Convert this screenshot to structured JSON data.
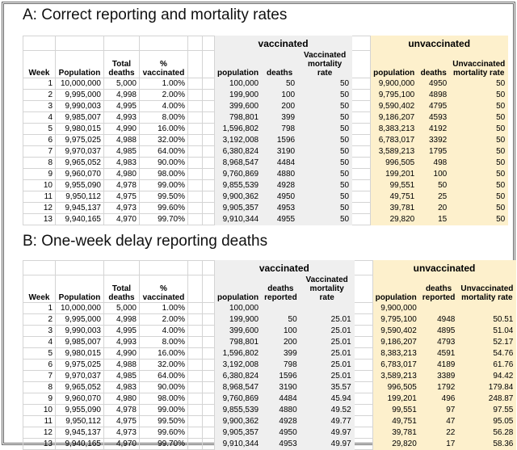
{
  "sections": [
    {
      "title": "A: Correct reporting and mortality rates",
      "group_headers": [
        "vaccinated",
        "unvaccinated"
      ],
      "columns": [
        "Week",
        "Population",
        "Total deaths",
        "% vaccinated",
        "population",
        "deaths",
        "Vaccinated mortality rate",
        "population",
        "deaths",
        "Unvaccinated mortality rate"
      ],
      "rows": [
        [
          "1",
          "10,000,000",
          "5,000",
          "1.00%",
          "100,000",
          "50",
          "50",
          "9,900,000",
          "4950",
          "50"
        ],
        [
          "2",
          "9,995,000",
          "4,998",
          "2.00%",
          "199,900",
          "100",
          "50",
          "9,795,100",
          "4898",
          "50"
        ],
        [
          "3",
          "9,990,003",
          "4,995",
          "4.00%",
          "399,600",
          "200",
          "50",
          "9,590,402",
          "4795",
          "50"
        ],
        [
          "4",
          "9,985,007",
          "4,993",
          "8.00%",
          "798,801",
          "399",
          "50",
          "9,186,207",
          "4593",
          "50"
        ],
        [
          "5",
          "9,980,015",
          "4,990",
          "16.00%",
          "1,596,802",
          "798",
          "50",
          "8,383,213",
          "4192",
          "50"
        ],
        [
          "6",
          "9,975,025",
          "4,988",
          "32.00%",
          "3,192,008",
          "1596",
          "50",
          "6,783,017",
          "3392",
          "50"
        ],
        [
          "7",
          "9,970,037",
          "4,985",
          "64.00%",
          "6,380,824",
          "3190",
          "50",
          "3,589,213",
          "1795",
          "50"
        ],
        [
          "8",
          "9,965,052",
          "4,983",
          "90.00%",
          "8,968,547",
          "4484",
          "50",
          "996,505",
          "498",
          "50"
        ],
        [
          "9",
          "9,960,070",
          "4,980",
          "98.00%",
          "9,760,869",
          "4880",
          "50",
          "199,201",
          "100",
          "50"
        ],
        [
          "10",
          "9,955,090",
          "4,978",
          "99.00%",
          "9,855,539",
          "4928",
          "50",
          "99,551",
          "50",
          "50"
        ],
        [
          "11",
          "9,950,112",
          "4,975",
          "99.50%",
          "9,900,362",
          "4950",
          "50",
          "49,751",
          "25",
          "50"
        ],
        [
          "12",
          "9,945,137",
          "4,973",
          "99.60%",
          "9,905,357",
          "4953",
          "50",
          "39,781",
          "20",
          "50"
        ],
        [
          "13",
          "9,940,165",
          "4,970",
          "99.70%",
          "9,910,344",
          "4955",
          "50",
          "29,820",
          "15",
          "50"
        ]
      ]
    },
    {
      "title": "B: One-week delay reporting deaths",
      "group_headers": [
        "vaccinated",
        "unvaccinated"
      ],
      "columns": [
        "Week",
        "Population",
        "Total deaths",
        "% vaccinated",
        "population",
        "deaths reported",
        "Vaccinated mortality rate",
        "population",
        "deaths reported",
        "Unvaccinated mortality rate"
      ],
      "rows": [
        [
          "1",
          "10,000,000",
          "5,000",
          "1.00%",
          "100,000",
          null,
          null,
          "9,900,000",
          null,
          null
        ],
        [
          "2",
          "9,995,000",
          "4,998",
          "2.00%",
          "199,900",
          "50",
          "25.01",
          "9,795,100",
          "4948",
          "50.51"
        ],
        [
          "3",
          "9,990,003",
          "4,995",
          "4.00%",
          "399,600",
          "100",
          "25.01",
          "9,590,402",
          "4895",
          "51.04"
        ],
        [
          "4",
          "9,985,007",
          "4,993",
          "8.00%",
          "798,801",
          "200",
          "25.01",
          "9,186,207",
          "4793",
          "52.17"
        ],
        [
          "5",
          "9,980,015",
          "4,990",
          "16.00%",
          "1,596,802",
          "399",
          "25.01",
          "8,383,213",
          "4591",
          "54.76"
        ],
        [
          "6",
          "9,975,025",
          "4,988",
          "32.00%",
          "3,192,008",
          "798",
          "25.01",
          "6,783,017",
          "4189",
          "61.76"
        ],
        [
          "7",
          "9,970,037",
          "4,985",
          "64.00%",
          "6,380,824",
          "1596",
          "25.01",
          "3,589,213",
          "3389",
          "94.42"
        ],
        [
          "8",
          "9,965,052",
          "4,983",
          "90.00%",
          "8,968,547",
          "3190",
          "35.57",
          "996,505",
          "1792",
          "179.84"
        ],
        [
          "9",
          "9,960,070",
          "4,980",
          "98.00%",
          "9,760,869",
          "4484",
          "45.94",
          "199,201",
          "496",
          "248.87"
        ],
        [
          "10",
          "9,955,090",
          "4,978",
          "99.00%",
          "9,855,539",
          "4880",
          "49.52",
          "99,551",
          "97",
          "97.55"
        ],
        [
          "11",
          "9,950,112",
          "4,975",
          "99.50%",
          "9,900,362",
          "4928",
          "49.77",
          "49,751",
          "47",
          "95.05"
        ],
        [
          "12",
          "9,945,137",
          "4,973",
          "99.60%",
          "9,905,357",
          "4950",
          "49.97",
          "39,781",
          "22",
          "56.28"
        ],
        [
          "13",
          "9,940,165",
          "4,970",
          "99.70%",
          "9,910,344",
          "4953",
          "49.97",
          "29,820",
          "17",
          "58.36"
        ]
      ]
    }
  ]
}
